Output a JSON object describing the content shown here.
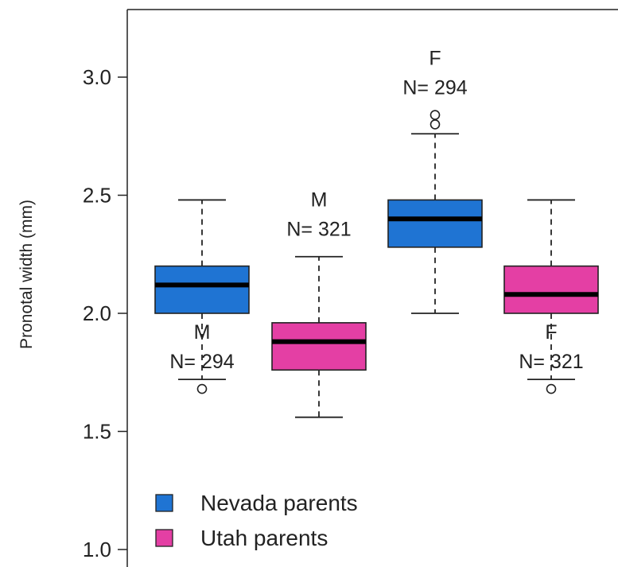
{
  "chart_data": {
    "type": "box",
    "ylabel": "Pronotal width (mm)",
    "ylim": [
      1.0,
      3.25
    ],
    "yticks": [
      1.0,
      1.5,
      2.0,
      2.5,
      3.0
    ],
    "ytick_labels": [
      "1.0",
      "1.5",
      "2.0",
      "2.5",
      "3.0"
    ],
    "colors": {
      "Nevada parents": "#1F74D3",
      "Utah parents": "#E43FA4"
    },
    "boxes": [
      {
        "series": "Nevada parents",
        "sex": "M",
        "n_label": "N= 294",
        "whisker_low": 1.72,
        "q1": 2.0,
        "median": 2.12,
        "q3": 2.2,
        "whisker_high": 2.48,
        "outliers": [
          1.68
        ]
      },
      {
        "series": "Utah parents",
        "sex": "M",
        "n_label": "N= 321",
        "whisker_low": 1.56,
        "q1": 1.76,
        "median": 1.88,
        "q3": 1.96,
        "whisker_high": 2.24,
        "outliers": []
      },
      {
        "series": "Nevada parents",
        "sex": "F",
        "n_label": "N= 294",
        "whisker_low": 2.0,
        "q1": 2.28,
        "median": 2.4,
        "q3": 2.48,
        "whisker_high": 2.76,
        "outliers": [
          2.8,
          2.84
        ]
      },
      {
        "series": "Utah parents",
        "sex": "F",
        "n_label": "N= 321",
        "whisker_low": 1.72,
        "q1": 2.0,
        "median": 2.08,
        "q3": 2.2,
        "whisker_high": 2.48,
        "outliers": [
          1.68
        ]
      }
    ],
    "legend": {
      "placement": "bottom-left",
      "entries": [
        "Nevada parents",
        "Utah parents"
      ]
    }
  }
}
